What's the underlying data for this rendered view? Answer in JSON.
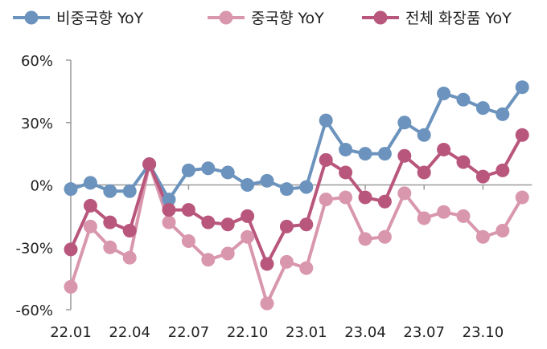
{
  "chart_data": {
    "type": "line",
    "title": "",
    "xlabel": "",
    "ylabel": "",
    "ylim": [
      -60,
      60
    ],
    "y_ticks": [
      60,
      30,
      0,
      -30,
      -60
    ],
    "y_tick_labels": [
      "60%",
      "30%",
      "0%",
      "-30%",
      "-60%"
    ],
    "x": [
      "22.01",
      "22.02",
      "22.03",
      "22.04",
      "22.05",
      "22.06",
      "22.07",
      "22.08",
      "22.09",
      "22.10",
      "22.11",
      "22.12",
      "23.01",
      "23.02",
      "23.03",
      "23.04",
      "23.05",
      "23.06",
      "23.07",
      "23.08",
      "23.09",
      "23.10",
      "23.11",
      "23.12"
    ],
    "x_tick_labels": [
      "22.01",
      "22.04",
      "22.07",
      "22.10",
      "23.01",
      "23.04",
      "23.07",
      "23.10"
    ],
    "legend_position": "top",
    "grid": false,
    "series": [
      {
        "name": "비중국향 YoY",
        "color": "#6b93bd",
        "values": [
          -2,
          1,
          -3,
          -3,
          10,
          -7,
          7,
          8,
          6,
          0,
          2,
          -2,
          -1,
          31,
          17,
          15,
          15,
          30,
          24,
          44,
          41,
          37,
          34,
          47
        ]
      },
      {
        "name": "중국향 YoY",
        "color": "#d997ad",
        "values": [
          -49,
          -20,
          -30,
          -35,
          10,
          -18,
          -27,
          -36,
          -33,
          -25,
          -57,
          -37,
          -40,
          -7,
          -6,
          -26,
          -25,
          -4,
          -16,
          -13,
          -15,
          -25,
          -22,
          -6
        ]
      },
      {
        "name": "전체 화장품 YoY",
        "color": "#b9567c",
        "values": [
          -31,
          -10,
          -18,
          -22,
          10,
          -12,
          -12,
          -18,
          -19,
          -15,
          -38,
          -20,
          -19,
          12,
          6,
          -6,
          -8,
          14,
          6,
          17,
          11,
          4,
          7,
          24
        ]
      }
    ]
  }
}
